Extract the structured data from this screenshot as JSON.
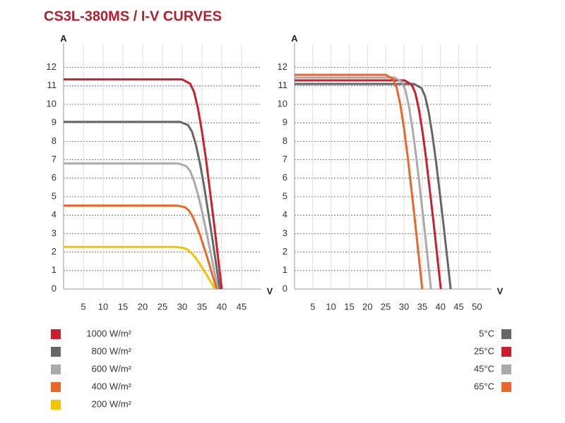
{
  "title": "CS3L-380MS / I-V CURVES",
  "chart_data": [
    {
      "type": "line",
      "xlabel": "V",
      "ylabel": "A",
      "xlim": [
        0,
        50
      ],
      "xticks": [
        5,
        10,
        15,
        20,
        25,
        30,
        35,
        40,
        45
      ],
      "ylim": [
        0,
        13
      ],
      "yticks": [
        0,
        1,
        2,
        3,
        4,
        5,
        6,
        7,
        8,
        9,
        10,
        11,
        12
      ],
      "grid": true,
      "legend": "bottom-left",
      "series": [
        {
          "name": "1000 W/m²",
          "color": "#c8202f",
          "x": [
            0,
            30,
            32,
            33,
            34,
            35,
            36,
            37,
            38,
            39,
            40
          ],
          "values": [
            11.35,
            11.35,
            11.12,
            10.67,
            9.76,
            8.51,
            7.04,
            5.33,
            3.63,
            1.82,
            0
          ]
        },
        {
          "name": "800 W/m²",
          "color": "#666666",
          "x": [
            0,
            29.5,
            31.5,
            32.5,
            33.5,
            34.5,
            35.5,
            36.5,
            37.5,
            38.5,
            39.5
          ],
          "values": [
            9.05,
            9.05,
            8.87,
            8.51,
            7.78,
            6.79,
            5.61,
            4.25,
            2.9,
            1.45,
            0
          ]
        },
        {
          "name": "600 W/m²",
          "color": "#aaaaaa",
          "x": [
            0,
            29,
            31,
            32,
            33,
            34,
            35,
            36,
            37,
            38,
            39
          ],
          "values": [
            6.8,
            6.8,
            6.66,
            6.39,
            5.85,
            5.1,
            4.22,
            3.2,
            2.18,
            1.09,
            0
          ]
        },
        {
          "name": "400 W/m²",
          "color": "#e8672b",
          "x": [
            0,
            28.7,
            30.7,
            31.7,
            32.7,
            33.7,
            34.7,
            35.7,
            36.7,
            37.7,
            38.7
          ],
          "values": [
            4.52,
            4.52,
            4.43,
            4.25,
            3.89,
            3.39,
            2.8,
            2.12,
            1.45,
            0.72,
            0
          ]
        },
        {
          "name": "200 W/m²",
          "color": "#f5c400",
          "x": [
            0,
            28.3,
            30.3,
            31.3,
            32.3,
            33.3,
            34.3,
            35.3,
            36.3,
            37.3,
            38.3
          ],
          "values": [
            2.28,
            2.28,
            2.23,
            2.14,
            1.96,
            1.71,
            1.41,
            1.07,
            0.73,
            0.36,
            0
          ]
        }
      ]
    },
    {
      "type": "line",
      "xlabel": "V",
      "ylabel": "A",
      "xlim": [
        0,
        54
      ],
      "xticks": [
        5,
        10,
        15,
        20,
        25,
        30,
        35,
        40,
        45,
        50
      ],
      "ylim": [
        0,
        13
      ],
      "yticks": [
        0,
        1,
        2,
        3,
        4,
        5,
        6,
        7,
        8,
        9,
        10,
        11,
        12
      ],
      "grid": true,
      "legend": "bottom-right",
      "series": [
        {
          "name": "5°C",
          "color": "#666666",
          "x": [
            0,
            32.8,
            34.8,
            35.8,
            36.8,
            37.8,
            38.8,
            39.8,
            40.8,
            41.8,
            42.8
          ],
          "values": [
            11.1,
            11.1,
            10.88,
            10.43,
            9.55,
            8.33,
            6.88,
            5.22,
            3.55,
            1.78,
            0
          ]
        },
        {
          "name": "25°C",
          "color": "#c8202f",
          "x": [
            0,
            30.1,
            32.1,
            33.1,
            34.1,
            35.1,
            36.1,
            37.1,
            38.1,
            39.1,
            40.1
          ],
          "values": [
            11.3,
            11.3,
            11.07,
            10.62,
            9.72,
            8.48,
            7.01,
            5.31,
            3.62,
            1.81,
            0
          ]
        },
        {
          "name": "45°C",
          "color": "#aaaaaa",
          "x": [
            0,
            27.4,
            29.4,
            30.4,
            31.4,
            32.4,
            33.4,
            34.4,
            35.4,
            36.4,
            37.4
          ],
          "values": [
            11.45,
            11.45,
            11.22,
            10.76,
            9.85,
            8.59,
            7.1,
            5.38,
            3.66,
            1.83,
            0
          ]
        },
        {
          "name": "65°C",
          "color": "#e8672b",
          "x": [
            0,
            25,
            27,
            28,
            29,
            30,
            31,
            32,
            33,
            34,
            35
          ],
          "values": [
            11.6,
            11.6,
            11.37,
            10.9,
            9.98,
            8.7,
            7.19,
            5.45,
            3.71,
            1.86,
            0
          ]
        }
      ]
    }
  ]
}
